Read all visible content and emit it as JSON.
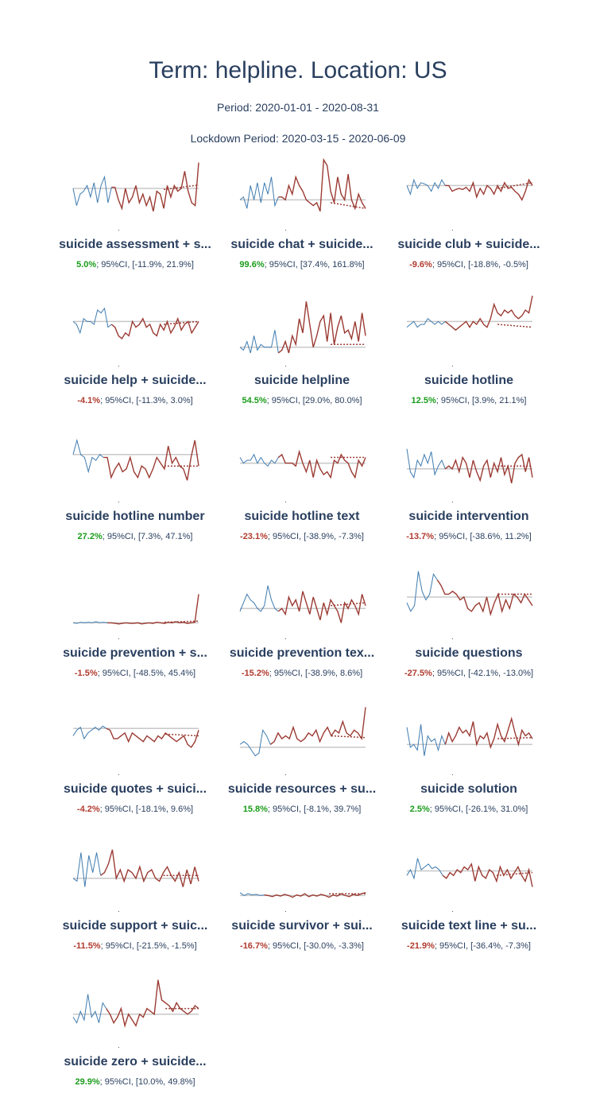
{
  "header": {
    "title": "Term: helpline. Location: US",
    "period": "Period: 2020-01-01 - 2020-08-31",
    "lockdown": "Lockdown Period: 2020-03-15 - 2020-06-09"
  },
  "colors": {
    "pre": "#3e7bb0",
    "post": "#9b3b33",
    "baseline": "#c8c8c8",
    "positive": "#1a9c1a",
    "negative": "#b03a2e",
    "text": "#2a3f5f"
  },
  "ci_label": "95%CI",
  "chart_data": [
    {
      "type": "line",
      "title": "suicide assessment + s...",
      "change": "5.0%",
      "ci": "[-11.9%, 21.9%]",
      "sign": "pos",
      "pre": [
        0.5,
        0.2,
        0.4,
        0.45,
        0.55,
        0.35,
        0.6,
        0.25,
        0.55,
        0.7,
        0.25,
        0.52
      ],
      "post": [
        0.52,
        0.3,
        0.15,
        0.5,
        0.25,
        0.35,
        0.55,
        0.25,
        0.4,
        0.2,
        0.35,
        0.1,
        0.45,
        0.4,
        0.15,
        0.55,
        0.35,
        0.55,
        0.45,
        0.5,
        0.8,
        0.45,
        0.25,
        0.2,
        0.95
      ],
      "baseline": 0.5,
      "trend": [
        0.48,
        0.56
      ]
    },
    {
      "type": "line",
      "title": "suicide chat + suicide...",
      "change": "99.6%",
      "ci": "[37.4%, 161.8%]",
      "sign": "pos",
      "pre": [
        0.3,
        0.35,
        0.15,
        0.55,
        0.3,
        0.6,
        0.25,
        0.6,
        0.4,
        0.7,
        0.2,
        0.35
      ],
      "post": [
        0.35,
        0.3,
        0.55,
        0.4,
        0.7,
        0.55,
        0.45,
        0.3,
        0.25,
        0.2,
        0.25,
        0.1,
        1.0,
        0.9,
        0.45,
        0.25,
        0.7,
        0.4,
        0.3,
        0.75,
        0.3,
        0.15,
        0.4,
        0.25,
        0.15
      ],
      "baseline": 0.3,
      "trend": [
        0.25,
        0.15
      ]
    },
    {
      "type": "line",
      "title": "suicide club + suicide...",
      "change": "-9.6%",
      "ci": "[-18.8%, -0.5%]",
      "sign": "neg",
      "pre": [
        0.55,
        0.4,
        0.65,
        0.5,
        0.6,
        0.58,
        0.55,
        0.45,
        0.6,
        0.5,
        0.65,
        0.55
      ],
      "post": [
        0.55,
        0.45,
        0.48,
        0.5,
        0.48,
        0.52,
        0.45,
        0.6,
        0.35,
        0.5,
        0.4,
        0.55,
        0.5,
        0.4,
        0.55,
        0.45,
        0.6,
        0.5,
        0.52,
        0.45,
        0.4,
        0.3,
        0.45,
        0.65,
        0.55
      ],
      "baseline": 0.55,
      "trend": [
        0.5,
        0.6
      ]
    },
    {
      "type": "line",
      "title": "suicide help + suicide...",
      "change": "-4.1%",
      "ci": "[-11.3%, 3.0%]",
      "sign": "neg",
      "pre": [
        0.55,
        0.5,
        0.35,
        0.6,
        0.55,
        0.55,
        0.5,
        0.75,
        0.7,
        0.78,
        0.45,
        0.5
      ],
      "post": [
        0.45,
        0.3,
        0.25,
        0.35,
        0.3,
        0.55,
        0.45,
        0.5,
        0.6,
        0.45,
        0.5,
        0.35,
        0.3,
        0.5,
        0.4,
        0.55,
        0.35,
        0.45,
        0.6,
        0.4,
        0.5,
        0.55,
        0.35,
        0.45,
        0.55
      ],
      "baseline": 0.55,
      "trend": [
        0.5,
        0.55
      ]
    },
    {
      "type": "line",
      "title": "suicide helpline",
      "change": "54.5%",
      "ci": "[29.0%, 80.0%]",
      "sign": "pos",
      "pre": [
        0.1,
        0.05,
        0.2,
        0.0,
        0.3,
        0.05,
        0.15,
        0.1,
        0.1,
        0.1,
        0.4,
        0.0
      ],
      "post": [
        0.05,
        0.2,
        0.0,
        0.3,
        0.15,
        0.6,
        0.35,
        0.9,
        0.5,
        0.1,
        0.3,
        0.55,
        0.65,
        0.2,
        0.7,
        0.15,
        0.45,
        0.65,
        0.35,
        0.4,
        0.25,
        0.55,
        0.2,
        0.7,
        0.3
      ],
      "baseline": 0.1,
      "trend": [
        0.15,
        0.15
      ]
    },
    {
      "type": "line",
      "title": "suicide hotline",
      "change": "12.5%",
      "ci": "[3.9%, 21.1%]",
      "sign": "pos",
      "pre": [
        0.45,
        0.5,
        0.55,
        0.45,
        0.5,
        0.5,
        0.6,
        0.55,
        0.5,
        0.55,
        0.5,
        0.55
      ],
      "post": [
        0.5,
        0.45,
        0.4,
        0.45,
        0.5,
        0.55,
        0.45,
        0.55,
        0.5,
        0.6,
        0.5,
        0.45,
        0.6,
        0.85,
        0.7,
        0.65,
        0.75,
        0.7,
        0.75,
        0.65,
        0.6,
        0.65,
        0.75,
        0.7,
        1.0
      ],
      "baseline": 0.55,
      "trend": [
        0.5,
        0.45
      ]
    },
    {
      "type": "line",
      "title": "suicide hotline number",
      "change": "27.2%",
      "ci": "[7.3%, 47.1%]",
      "sign": "pos",
      "pre": [
        0.6,
        0.85,
        0.6,
        0.55,
        0.3,
        0.55,
        0.5,
        0.6,
        0.55
      ],
      "post": [
        0.55,
        0.2,
        0.35,
        0.45,
        0.3,
        0.35,
        0.55,
        0.3,
        0.2,
        0.4,
        0.35,
        0.2,
        0.35,
        0.55,
        0.45,
        0.35,
        0.75,
        0.45,
        0.55,
        0.4,
        0.35,
        0.15,
        0.55,
        0.85,
        0.4
      ],
      "baseline": 0.6,
      "trend": [
        0.4,
        0.4
      ]
    },
    {
      "type": "line",
      "title": "suicide hotline text",
      "change": "-23.1%",
      "ci": "[-38.9%, -7.3%]",
      "sign": "neg",
      "pre": [
        0.55,
        0.45,
        0.5,
        0.5,
        0.6,
        0.45,
        0.55,
        0.45,
        0.4,
        0.5,
        0.45,
        0.55
      ],
      "post": [
        0.6,
        0.45,
        0.45,
        0.45,
        0.4,
        0.65,
        0.45,
        0.3,
        0.5,
        0.2,
        0.5,
        0.35,
        0.25,
        0.3,
        0.2,
        0.5,
        0.45,
        0.6,
        0.5,
        0.45,
        0.3,
        0.2,
        0.5,
        0.4,
        0.55
      ],
      "baseline": 0.45,
      "trend": [
        0.55,
        0.55
      ]
    },
    {
      "type": "line",
      "title": "suicide intervention",
      "change": "-13.7%",
      "ci": "[-38.6%, 11.2%]",
      "sign": "neg",
      "pre": [
        0.7,
        0.3,
        0.2,
        0.5,
        0.4,
        0.6,
        0.45,
        0.65,
        0.25,
        0.4,
        0.5,
        0.35
      ],
      "post": [
        0.4,
        0.35,
        0.5,
        0.3,
        0.55,
        0.45,
        0.2,
        0.5,
        0.3,
        0.15,
        0.4,
        0.5,
        0.2,
        0.45,
        0.3,
        0.55,
        0.25,
        0.4,
        0.1,
        0.45,
        0.55,
        0.6,
        0.3,
        0.55,
        0.2
      ],
      "baseline": 0.35,
      "trend": [
        0.4,
        0.4
      ]
    },
    {
      "type": "line",
      "title": "suicide prevention + s...",
      "change": "-1.5%",
      "ci": "[-48.5%, 45.4%]",
      "sign": "neg",
      "pre": [
        0.05,
        0.04,
        0.06,
        0.05,
        0.06,
        0.05,
        0.07,
        0.05,
        0.06,
        0.05
      ],
      "post": [
        0.05,
        0.04,
        0.03,
        0.04,
        0.05,
        0.04,
        0.04,
        0.05,
        0.03,
        0.04,
        0.05,
        0.04,
        0.06,
        0.05,
        0.04,
        0.06,
        0.05,
        0.07,
        0.05,
        0.06,
        0.04,
        0.05,
        0.06,
        0.55
      ],
      "baseline": 0.05,
      "trend": [
        0.06,
        0.08
      ]
    },
    {
      "type": "line",
      "title": "suicide prevention tex...",
      "change": "-15.2%",
      "ci": "[-38.9%, 8.6%]",
      "sign": "neg",
      "pre": [
        0.25,
        0.4,
        0.55,
        0.45,
        0.4,
        0.3,
        0.25,
        0.35,
        0.7,
        0.45,
        0.3,
        0.25
      ],
      "post": [
        0.3,
        0.2,
        0.5,
        0.35,
        0.45,
        0.25,
        0.6,
        0.4,
        0.2,
        0.5,
        0.3,
        0.1,
        0.4,
        0.2,
        0.45,
        0.35,
        0.25,
        0.05,
        0.4,
        0.3,
        0.45,
        0.35,
        0.2,
        0.55,
        0.35
      ],
      "baseline": 0.3,
      "trend": [
        0.35,
        0.4
      ]
    },
    {
      "type": "line",
      "title": "suicide questions",
      "change": "-27.5%",
      "ci": "[-42.1%, -13.0%]",
      "sign": "neg",
      "pre": [
        0.4,
        0.25,
        0.35,
        0.95,
        0.6,
        0.45,
        0.55,
        0.9,
        0.8
      ],
      "post": [
        0.7,
        0.55,
        0.55,
        0.6,
        0.55,
        0.45,
        0.5,
        0.3,
        0.25,
        0.35,
        0.4,
        0.25,
        0.5,
        0.2,
        0.4,
        0.55,
        0.25,
        0.45,
        0.3,
        0.55,
        0.5,
        0.4,
        0.55,
        0.45,
        0.35
      ],
      "baseline": 0.5,
      "trend": [
        0.55,
        0.55
      ]
    },
    {
      "type": "line",
      "title": "suicide quotes + suici...",
      "change": "-4.2%",
      "ci": "[-18.1%, 9.6%]",
      "sign": "neg",
      "pre": [
        0.45,
        0.55,
        0.6,
        0.4,
        0.5,
        0.55,
        0.6,
        0.55,
        0.62,
        0.58
      ],
      "post": [
        0.55,
        0.4,
        0.4,
        0.45,
        0.5,
        0.35,
        0.5,
        0.45,
        0.4,
        0.35,
        0.45,
        0.4,
        0.35,
        0.45,
        0.4,
        0.5,
        0.45,
        0.4,
        0.35,
        0.4,
        0.45,
        0.3,
        0.25,
        0.35,
        0.55
      ],
      "baseline": 0.58,
      "trend": [
        0.48,
        0.45
      ]
    },
    {
      "type": "line",
      "title": "suicide resources + su...",
      "change": "15.8%",
      "ci": "[-8.1%, 39.7%]",
      "sign": "pos",
      "pre": [
        0.3,
        0.35,
        0.3,
        0.2,
        0.1,
        0.15,
        0.55,
        0.45,
        0.3
      ],
      "post": [
        0.35,
        0.5,
        0.4,
        0.45,
        0.4,
        0.6,
        0.4,
        0.35,
        0.4,
        0.5,
        0.45,
        0.55,
        0.35,
        0.5,
        0.6,
        0.45,
        0.55,
        0.5,
        0.7,
        0.5,
        0.45,
        0.55,
        0.5,
        0.4,
        0.95
      ],
      "baseline": 0.25,
      "trend": [
        0.45,
        0.42
      ]
    },
    {
      "type": "line",
      "title": "suicide solution",
      "change": "2.5%",
      "ci": "[-26.1%, 31.0%]",
      "sign": "pos",
      "pre": [
        0.6,
        0.25,
        0.3,
        0.2,
        0.65,
        0.1,
        0.45,
        0.35,
        0.4,
        0.2,
        0.45,
        0.3
      ],
      "post": [
        0.5,
        0.35,
        0.45,
        0.6,
        0.5,
        0.55,
        0.45,
        0.7,
        0.3,
        0.45,
        0.4,
        0.5,
        0.25,
        0.4,
        0.65,
        0.45,
        0.35,
        0.55,
        0.75,
        0.5,
        0.3,
        0.55,
        0.45,
        0.5,
        0.4
      ],
      "baseline": 0.3,
      "trend": [
        0.4,
        0.42
      ]
    },
    {
      "type": "line",
      "title": "suicide support + suic...",
      "change": "-11.5%",
      "ci": "[-21.5%, -1.5%]",
      "sign": "neg",
      "pre": [
        0.35,
        0.3,
        0.8,
        0.2,
        0.75,
        0.45,
        0.8,
        0.4
      ],
      "post": [
        0.45,
        0.6,
        0.85,
        0.35,
        0.5,
        0.3,
        0.5,
        0.45,
        0.35,
        0.55,
        0.3,
        0.45,
        0.5,
        0.35,
        0.3,
        0.45,
        0.55,
        0.4,
        0.3,
        0.45,
        0.2,
        0.5,
        0.25,
        0.55,
        0.3
      ],
      "baseline": 0.35,
      "trend": [
        0.4,
        0.4
      ]
    },
    {
      "type": "line",
      "title": "suicide survivor + sui...",
      "change": "-16.7%",
      "ci": "[-30.0%, -3.3%]",
      "sign": "neg",
      "pre": [
        0.1,
        0.05,
        0.08,
        0.06,
        0.07,
        0.05,
        0.06
      ],
      "post": [
        0.05,
        0.03,
        0.06,
        0.04,
        0.07,
        0.05,
        0.02,
        0.06,
        0.04,
        0.08,
        0.03,
        0.06,
        0.04,
        0.07,
        0.05,
        0.02,
        0.06,
        0.04,
        0.08,
        0.05,
        0.03,
        0.07,
        0.05,
        0.08,
        0.1
      ],
      "baseline": 0.05,
      "trend": [
        0.08,
        0.08
      ]
    },
    {
      "type": "line",
      "title": "suicide text line + su...",
      "change": "-21.9%",
      "ci": "[-36.4%, -7.3%]",
      "sign": "neg",
      "pre": [
        0.4,
        0.5,
        0.35,
        0.7,
        0.5,
        0.55,
        0.6,
        0.52,
        0.55,
        0.5,
        0.4
      ],
      "post": [
        0.35,
        0.45,
        0.4,
        0.5,
        0.45,
        0.55,
        0.5,
        0.6,
        0.3,
        0.55,
        0.4,
        0.35,
        0.5,
        0.45,
        0.3,
        0.55,
        0.4,
        0.5,
        0.35,
        0.45,
        0.55,
        0.4,
        0.3,
        0.5,
        0.2
      ],
      "baseline": 0.48,
      "trend": [
        0.4,
        0.45
      ]
    },
    {
      "type": "line",
      "title": "suicide zero + suicide...",
      "change": "29.9%",
      "ci": "[10.0%, 49.8%]",
      "sign": "pos",
      "pre": [
        0.3,
        0.2,
        0.4,
        0.25,
        0.7,
        0.3,
        0.4,
        0.2,
        0.55,
        0.45
      ],
      "post": [
        0.35,
        0.2,
        0.3,
        0.45,
        0.15,
        0.35,
        0.25,
        0.15,
        0.35,
        0.3,
        0.45,
        0.4,
        0.35,
        0.95,
        0.6,
        0.55,
        0.5,
        0.4,
        0.55,
        0.45,
        0.4,
        0.35,
        0.4,
        0.5,
        0.45
      ],
      "baseline": 0.35,
      "trend": [
        0.45,
        0.45
      ]
    }
  ]
}
